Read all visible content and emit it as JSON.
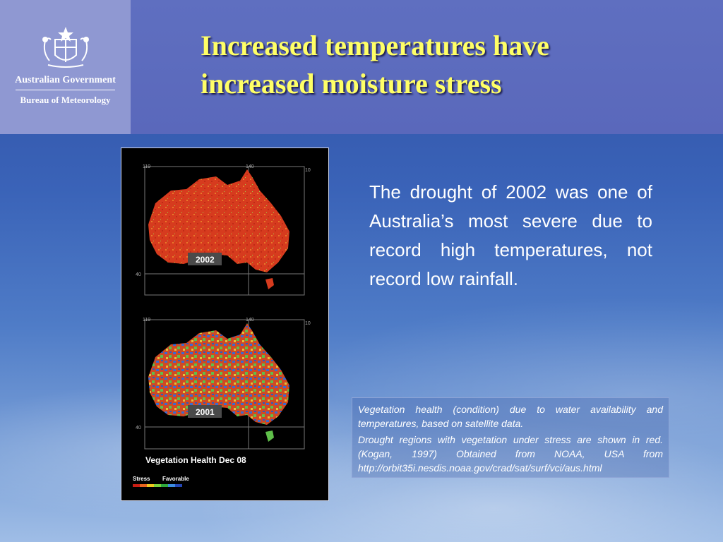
{
  "header": {
    "org_name": "Australian Government",
    "org_unit": "Bureau of Meteorology",
    "title_line1": "Increased temperatures have",
    "title_line2": "increased moisture stress"
  },
  "figure": {
    "map_top_year": "2002",
    "map_bottom_year": "2001",
    "figure_label": "Vegetation Health Dec 08",
    "legend_stress": "Stress",
    "legend_favorable": "Favorable",
    "axis_lon_left": "119",
    "axis_lon_right": "140",
    "axis_lat_top": "10",
    "axis_lat_bottom": "40"
  },
  "body": {
    "text": "The drought of 2002 was one of Australia’s most severe due to record high temperatures, not record low rainfall."
  },
  "caption": {
    "p1": "Vegetation health (condition) due to water availability and temperatures, based on satellite data.",
    "p2": "Drought regions with vegetation under stress are shown in red. (Kogan, 1997) Obtained from NOAA, USA from http://orbit35i.nesdis.noaa.gov/crad/sat/surf/vci/aus.html"
  },
  "colors": {
    "title": "#ffff66",
    "stress": "#d63b1e",
    "favorable": "#2f63c9"
  }
}
